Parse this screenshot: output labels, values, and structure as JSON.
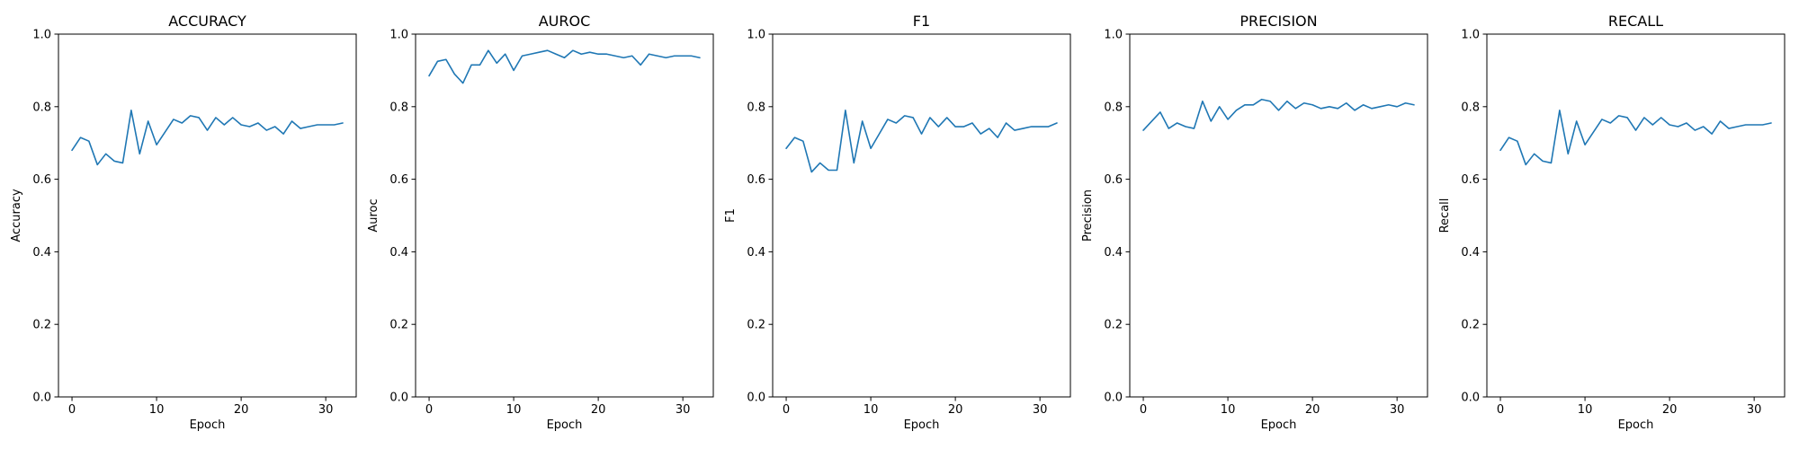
{
  "chart_data": [
    {
      "type": "line",
      "title": "ACCURACY",
      "xlabel": "Epoch",
      "ylabel": "Accuracy",
      "xlim": [
        -1.6,
        33.6
      ],
      "ylim": [
        0.0,
        1.0
      ],
      "xticks": [
        0,
        10,
        20,
        30
      ],
      "yticks": [
        0.0,
        0.2,
        0.4,
        0.6,
        0.8,
        1.0
      ],
      "grid": false,
      "color": "#1f77b4",
      "x": [
        0,
        1,
        2,
        3,
        4,
        5,
        6,
        7,
        8,
        9,
        10,
        11,
        12,
        13,
        14,
        15,
        16,
        17,
        18,
        19,
        20,
        21,
        22,
        23,
        24,
        25,
        26,
        27,
        28,
        29,
        30,
        31,
        32
      ],
      "values": [
        0.68,
        0.715,
        0.705,
        0.64,
        0.67,
        0.65,
        0.645,
        0.79,
        0.67,
        0.76,
        0.695,
        0.73,
        0.765,
        0.755,
        0.775,
        0.77,
        0.735,
        0.77,
        0.75,
        0.77,
        0.75,
        0.745,
        0.755,
        0.735,
        0.745,
        0.725,
        0.76,
        0.74,
        0.745,
        0.75,
        0.75,
        0.75,
        0.755
      ]
    },
    {
      "type": "line",
      "title": "AUROC",
      "xlabel": "Epoch",
      "ylabel": "Auroc",
      "xlim": [
        -1.6,
        33.6
      ],
      "ylim": [
        0.0,
        1.0
      ],
      "xticks": [
        0,
        10,
        20,
        30
      ],
      "yticks": [
        0.0,
        0.2,
        0.4,
        0.6,
        0.8,
        1.0
      ],
      "grid": false,
      "color": "#1f77b4",
      "x": [
        0,
        1,
        2,
        3,
        4,
        5,
        6,
        7,
        8,
        9,
        10,
        11,
        12,
        13,
        14,
        15,
        16,
        17,
        18,
        19,
        20,
        21,
        22,
        23,
        24,
        25,
        26,
        27,
        28,
        29,
        30,
        31,
        32
      ],
      "values": [
        0.885,
        0.925,
        0.93,
        0.89,
        0.865,
        0.915,
        0.915,
        0.955,
        0.92,
        0.945,
        0.9,
        0.94,
        0.945,
        0.95,
        0.955,
        0.945,
        0.935,
        0.955,
        0.945,
        0.95,
        0.945,
        0.945,
        0.94,
        0.935,
        0.94,
        0.915,
        0.945,
        0.94,
        0.935,
        0.94,
        0.94,
        0.94,
        0.935
      ]
    },
    {
      "type": "line",
      "title": "F1",
      "xlabel": "Epoch",
      "ylabel": "F1",
      "xlim": [
        -1.6,
        33.6
      ],
      "ylim": [
        0.0,
        1.0
      ],
      "xticks": [
        0,
        10,
        20,
        30
      ],
      "yticks": [
        0.0,
        0.2,
        0.4,
        0.6,
        0.8,
        1.0
      ],
      "grid": false,
      "color": "#1f77b4",
      "x": [
        0,
        1,
        2,
        3,
        4,
        5,
        6,
        7,
        8,
        9,
        10,
        11,
        12,
        13,
        14,
        15,
        16,
        17,
        18,
        19,
        20,
        21,
        22,
        23,
        24,
        25,
        26,
        27,
        28,
        29,
        30,
        31,
        32
      ],
      "values": [
        0.685,
        0.715,
        0.705,
        0.62,
        0.645,
        0.625,
        0.625,
        0.79,
        0.645,
        0.76,
        0.685,
        0.725,
        0.765,
        0.755,
        0.775,
        0.77,
        0.725,
        0.77,
        0.745,
        0.77,
        0.745,
        0.745,
        0.755,
        0.725,
        0.74,
        0.715,
        0.755,
        0.735,
        0.74,
        0.745,
        0.745,
        0.745,
        0.755
      ]
    },
    {
      "type": "line",
      "title": "PRECISION",
      "xlabel": "Epoch",
      "ylabel": "Precision",
      "xlim": [
        -1.6,
        33.6
      ],
      "ylim": [
        0.0,
        1.0
      ],
      "xticks": [
        0,
        10,
        20,
        30
      ],
      "yticks": [
        0.0,
        0.2,
        0.4,
        0.6,
        0.8,
        1.0
      ],
      "grid": false,
      "color": "#1f77b4",
      "x": [
        0,
        1,
        2,
        3,
        4,
        5,
        6,
        7,
        8,
        9,
        10,
        11,
        12,
        13,
        14,
        15,
        16,
        17,
        18,
        19,
        20,
        21,
        22,
        23,
        24,
        25,
        26,
        27,
        28,
        29,
        30,
        31,
        32
      ],
      "values": [
        0.735,
        0.76,
        0.785,
        0.74,
        0.755,
        0.745,
        0.74,
        0.815,
        0.76,
        0.8,
        0.765,
        0.79,
        0.805,
        0.805,
        0.82,
        0.815,
        0.79,
        0.815,
        0.795,
        0.81,
        0.805,
        0.795,
        0.8,
        0.795,
        0.81,
        0.79,
        0.805,
        0.795,
        0.8,
        0.805,
        0.8,
        0.81,
        0.805
      ]
    },
    {
      "type": "line",
      "title": "RECALL",
      "xlabel": "Epoch",
      "ylabel": "Recall",
      "xlim": [
        -1.6,
        33.6
      ],
      "ylim": [
        0.0,
        1.0
      ],
      "xticks": [
        0,
        10,
        20,
        30
      ],
      "yticks": [
        0.0,
        0.2,
        0.4,
        0.6,
        0.8,
        1.0
      ],
      "grid": false,
      "color": "#1f77b4",
      "x": [
        0,
        1,
        2,
        3,
        4,
        5,
        6,
        7,
        8,
        9,
        10,
        11,
        12,
        13,
        14,
        15,
        16,
        17,
        18,
        19,
        20,
        21,
        22,
        23,
        24,
        25,
        26,
        27,
        28,
        29,
        30,
        31,
        32
      ],
      "values": [
        0.68,
        0.715,
        0.705,
        0.64,
        0.67,
        0.65,
        0.645,
        0.79,
        0.67,
        0.76,
        0.695,
        0.73,
        0.765,
        0.755,
        0.775,
        0.77,
        0.735,
        0.77,
        0.75,
        0.77,
        0.75,
        0.745,
        0.755,
        0.735,
        0.745,
        0.725,
        0.76,
        0.74,
        0.745,
        0.75,
        0.75,
        0.75,
        0.755
      ]
    }
  ]
}
